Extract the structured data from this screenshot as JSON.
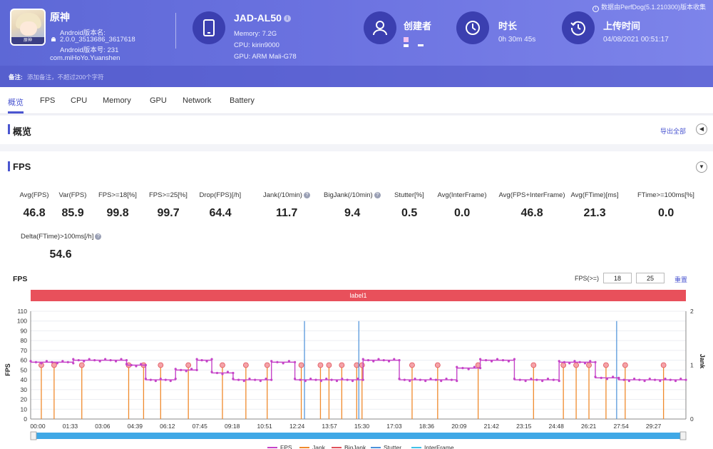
{
  "app": {
    "name": "原神",
    "version_label": "Android版本名:",
    "version_name": "2.0.0_3513686_3617618",
    "version_code": "Android版本号: 231",
    "package": "com.miHoYo.Yuanshen",
    "icon_text": "原神"
  },
  "device": {
    "name": "JAD-AL50",
    "memory": "Memory: 7.2G",
    "cpu": "CPU: kirin9000",
    "gpu": "GPU: ARM Mali-G78"
  },
  "creator": {
    "title": "创建者"
  },
  "duration": {
    "title": "时长",
    "value": "0h 30m 45s"
  },
  "upload": {
    "title": "上传时间",
    "value": "04/08/2021 00:51:17"
  },
  "version_note": "数据由PerfDog(5.1.210300)版本收集",
  "note": {
    "label": "备注:",
    "placeholder": "添加备注，不超过200个字符"
  },
  "tabs": [
    "概览",
    "FPS",
    "CPU",
    "Memory",
    "GPU",
    "Network",
    "Battery"
  ],
  "overview": {
    "title": "概览",
    "export": "导出全部"
  },
  "fps_section": {
    "title": "FPS",
    "metrics": [
      {
        "label": "Avg(FPS)",
        "value": "46.8"
      },
      {
        "label": "Var(FPS)",
        "value": "85.9"
      },
      {
        "label": "FPS>=18[%]",
        "value": "99.8"
      },
      {
        "label": "FPS>=25[%]",
        "value": "99.7"
      },
      {
        "label": "Drop(FPS)[/h]",
        "value": "64.4"
      },
      {
        "label": "Jank(/10min)",
        "value": "11.7"
      },
      {
        "label": "BigJank(/10min)",
        "value": "9.4"
      },
      {
        "label": "Stutter[%]",
        "value": "0.5"
      },
      {
        "label": "Avg(InterFrame)",
        "value": "0.0"
      },
      {
        "label": "Avg(FPS+InterFrame)",
        "value": "46.8"
      },
      {
        "label": "Avg(FTime)[ms]",
        "value": "21.3"
      },
      {
        "label": "FTime>=100ms[%]",
        "value": "0.0"
      },
      {
        "label": "Delta(FTime)>100ms[/h]",
        "value": "54.6"
      }
    ],
    "chart_title": "FPS",
    "threshold_label": "FPS(>=)",
    "threshold_1": "18",
    "threshold_2": "25",
    "reset": "重置",
    "label_name": "label1"
  },
  "chart_data": {
    "type": "line",
    "ylabel": "FPS",
    "y2label": "Jank",
    "ylim": [
      0,
      110
    ],
    "y_ticks": [
      0,
      10,
      20,
      30,
      40,
      50,
      60,
      70,
      80,
      90,
      100,
      110
    ],
    "y2lim": [
      0,
      2
    ],
    "y2_ticks": [
      0,
      1,
      2
    ],
    "x_ticks": [
      "00:00",
      "01:33",
      "03:06",
      "04:39",
      "06:12",
      "07:45",
      "09:18",
      "10:51",
      "12:24",
      "13:57",
      "15:30",
      "17:03",
      "18:36",
      "20:09",
      "21:42",
      "23:15",
      "24:48",
      "26:21",
      "27:54",
      "29:27"
    ],
    "legend": [
      "FPS",
      "Jank",
      "BigJank",
      "Stutter",
      "InterFrame"
    ],
    "colors": {
      "FPS": "#c544c8",
      "Jank": "#f08a2c",
      "BigJank": "#e0505a",
      "Stutter": "#4a90d9",
      "InterFrame": "#41c1e8"
    },
    "fps_segments": [
      {
        "start_min": 0.0,
        "end_min": 2.0,
        "fps": 58
      },
      {
        "start_min": 2.0,
        "end_min": 4.5,
        "fps": 60
      },
      {
        "start_min": 4.5,
        "end_min": 5.4,
        "fps": 55
      },
      {
        "start_min": 5.4,
        "end_min": 6.8,
        "fps": 40
      },
      {
        "start_min": 6.8,
        "end_min": 7.8,
        "fps": 50
      },
      {
        "start_min": 7.8,
        "end_min": 8.5,
        "fps": 60
      },
      {
        "start_min": 8.5,
        "end_min": 9.5,
        "fps": 47
      },
      {
        "start_min": 9.5,
        "end_min": 11.3,
        "fps": 40
      },
      {
        "start_min": 11.3,
        "end_min": 12.4,
        "fps": 58
      },
      {
        "start_min": 12.4,
        "end_min": 15.6,
        "fps": 40
      },
      {
        "start_min": 15.6,
        "end_min": 17.3,
        "fps": 60
      },
      {
        "start_min": 17.3,
        "end_min": 20.0,
        "fps": 40
      },
      {
        "start_min": 20.0,
        "end_min": 21.1,
        "fps": 52
      },
      {
        "start_min": 21.1,
        "end_min": 22.7,
        "fps": 60
      },
      {
        "start_min": 22.7,
        "end_min": 24.8,
        "fps": 40
      },
      {
        "start_min": 24.8,
        "end_min": 26.5,
        "fps": 58
      },
      {
        "start_min": 26.5,
        "end_min": 27.6,
        "fps": 42
      },
      {
        "start_min": 27.6,
        "end_min": 30.75,
        "fps": 40
      }
    ],
    "jank_times_min": [
      0.5,
      1.1,
      2.4,
      4.6,
      5.3,
      6.1,
      7.4,
      9.0,
      10.1,
      11.1,
      12.7,
      13.6,
      14.0,
      14.6,
      15.3,
      15.55,
      17.9,
      19.1,
      21.0,
      23.6,
      25.0,
      25.6,
      26.2,
      27.0,
      27.9,
      29.7
    ],
    "stutter_peaks_min": [
      {
        "t": 12.85,
        "v": 100
      },
      {
        "t": 15.4,
        "v": 100
      },
      {
        "t": 27.5,
        "v": 100
      }
    ]
  }
}
